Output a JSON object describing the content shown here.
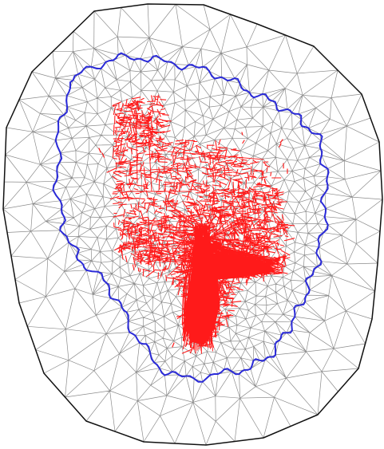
{
  "figure": {
    "background": "#ffffff",
    "colors": {
      "outer_boundary": "#111111",
      "inner_boundary": "#2a2ad8",
      "mesh_edges": "#8c8c8c",
      "feature_lines": "#ff1a1a"
    },
    "layers": {
      "outer_boundary": true,
      "inner_boundary": true,
      "mesh": true,
      "feature_lines": true
    }
  }
}
